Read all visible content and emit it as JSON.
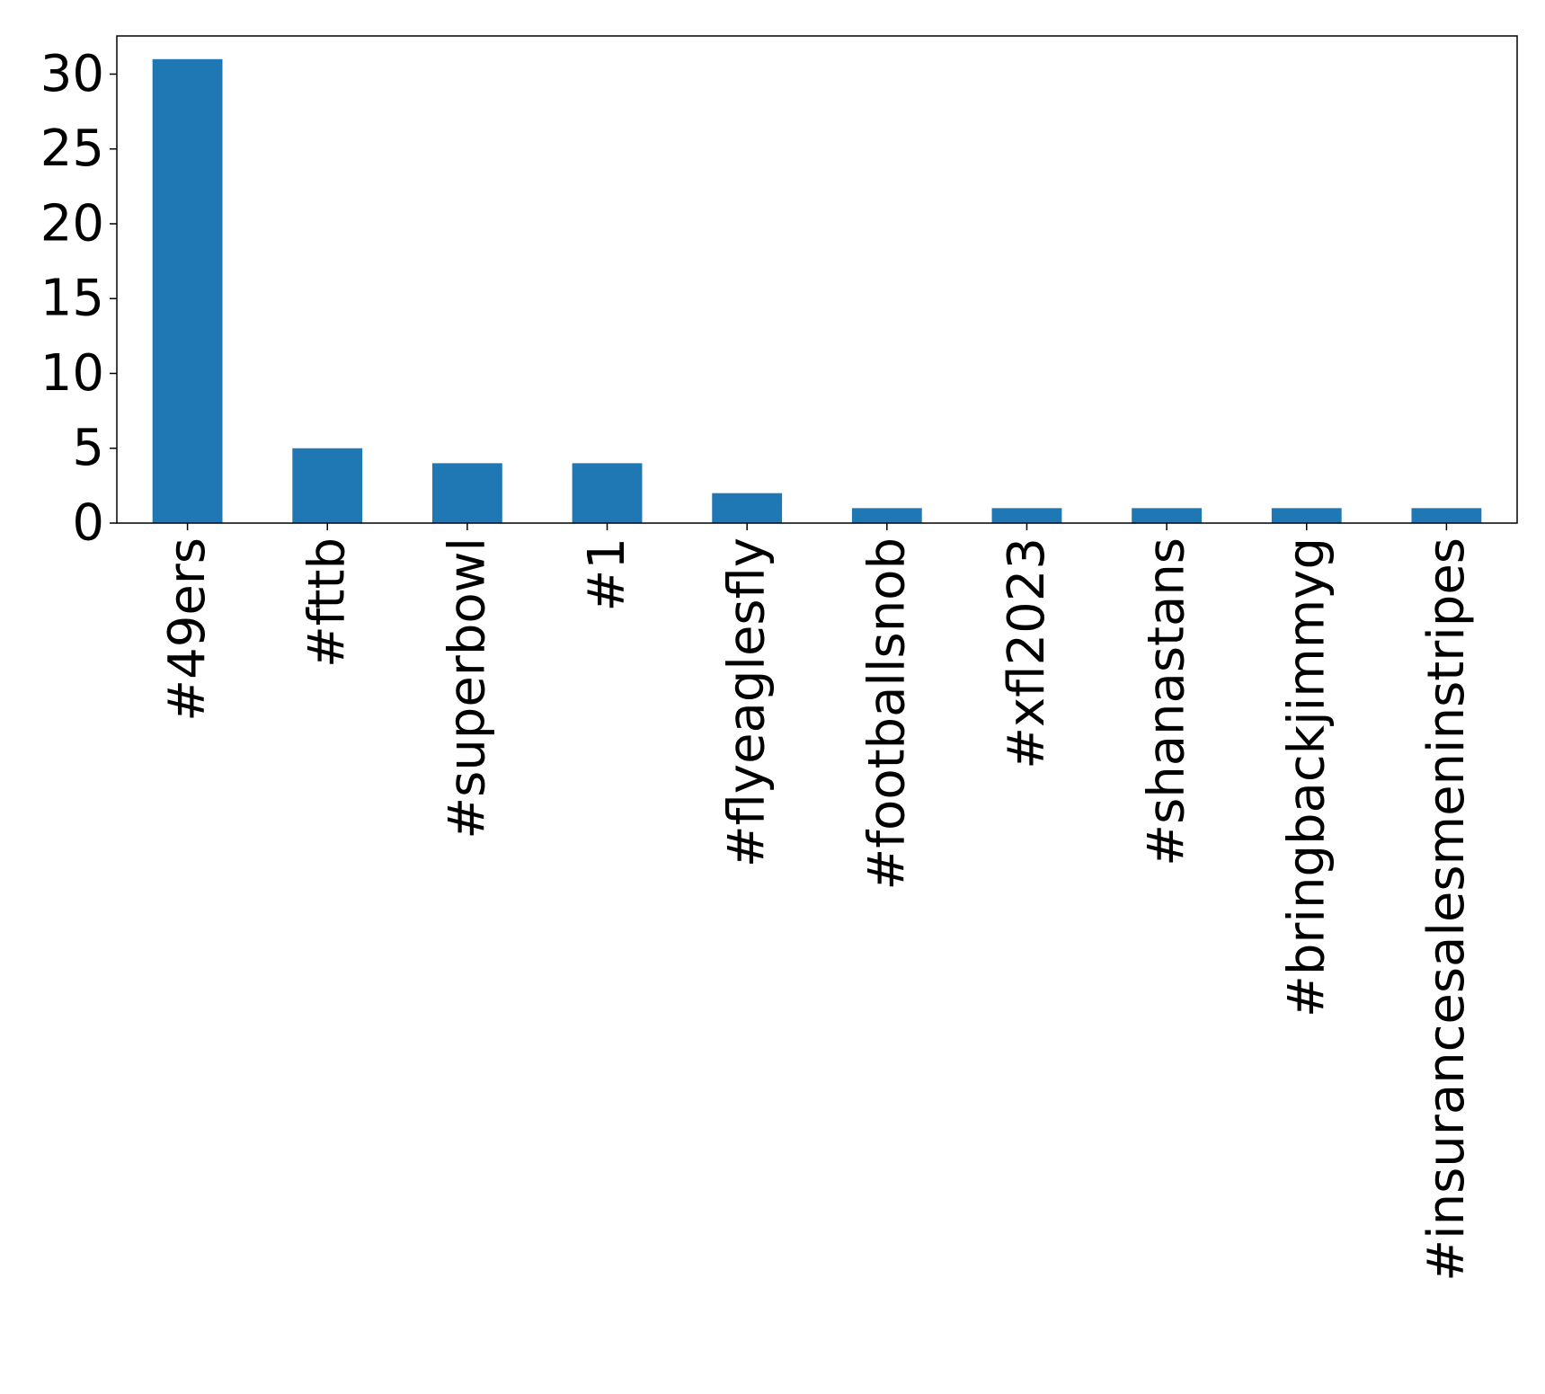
{
  "chart_data": {
    "type": "bar",
    "title": "",
    "xlabel": "",
    "ylabel": "",
    "categories": [
      "#49ers",
      "#fttb",
      "#superbowl",
      "#1",
      "#flyeaglesfly",
      "#footballsnob",
      "#xfl2023",
      "#shanastans",
      "#bringbackjimmyg",
      "#insurancesalesmeninstripes"
    ],
    "values": [
      31,
      5,
      4,
      4,
      2,
      1,
      1,
      1,
      1,
      1
    ],
    "ylim": [
      0,
      32.55
    ],
    "yticks": [
      0,
      5,
      10,
      15,
      20,
      25,
      30
    ],
    "ytick_labels": [
      "0",
      "5",
      "10",
      "15",
      "20",
      "25",
      "30"
    ],
    "bar_color": "#1f77b4",
    "grid": false,
    "legend": "none"
  }
}
